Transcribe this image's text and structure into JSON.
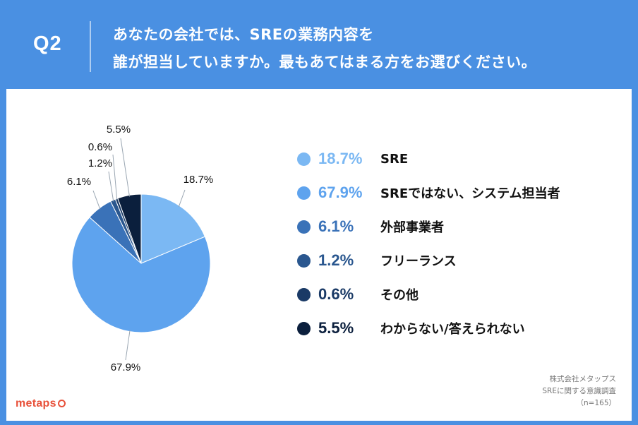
{
  "question": {
    "number": "Q2",
    "line1": "あなたの会社では、SREの業務内容を",
    "line2": "誰が担当していますか。最もあてはまる方をお選びください。"
  },
  "chart_data": {
    "type": "pie",
    "categories": [
      "SRE",
      "SREではない、システム担当者",
      "外部事業者",
      "フリーランス",
      "その他",
      "わからない/答えられない"
    ],
    "values": [
      18.7,
      67.9,
      6.1,
      1.2,
      0.6,
      5.5
    ],
    "value_labels": [
      "18.7%",
      "67.9%",
      "6.1%",
      "1.2%",
      "0.6%",
      "5.5%"
    ],
    "colors": [
      "#7bb8f3",
      "#5ea3ee",
      "#3a72b8",
      "#2a578f",
      "#1a3a66",
      "#0b1f3d"
    ],
    "start_angle": "12 o'clock",
    "direction": "clockwise",
    "legend_position": "right"
  },
  "footer": {
    "logo": "metaps",
    "source_line1": "株式会社メタップス",
    "source_line2": "SREに関する意識調査",
    "source_line3": "（n=165）"
  }
}
